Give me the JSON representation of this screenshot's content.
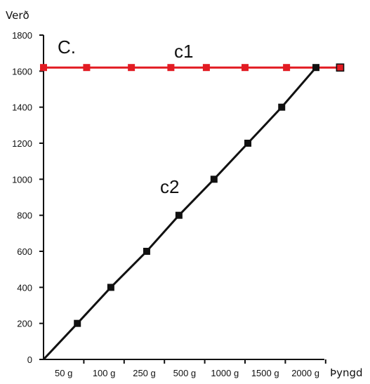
{
  "chart_data": {
    "type": "line",
    "panel_label": "C.",
    "ylabel": "Verð",
    "xlabel": "Þyngd",
    "ylim": [
      0,
      1800
    ],
    "yticks": [
      0,
      200,
      400,
      600,
      800,
      1000,
      1200,
      1400,
      1600,
      1800
    ],
    "categories": [
      "50 g",
      "100 g",
      "250 g",
      "500 g",
      "1000 g",
      "1500 g",
      "2000 g"
    ],
    "grid": false,
    "series": [
      {
        "name": "c1",
        "color": "#e21b22",
        "marker_color": "#e21b22",
        "points": [
          {
            "x": 0,
            "y": 1620
          },
          {
            "x": 1.07,
            "y": 1620
          },
          {
            "x": 2.18,
            "y": 1620
          },
          {
            "x": 3.16,
            "y": 1620
          },
          {
            "x": 4.04,
            "y": 1620
          },
          {
            "x": 5.0,
            "y": 1620
          },
          {
            "x": 6.03,
            "y": 1620
          },
          {
            "x": 7.36,
            "y": 1620
          }
        ]
      },
      {
        "name": "c2",
        "color": "#111111",
        "marker_color": "#111111",
        "points": [
          {
            "x": 0,
            "y": 0
          },
          {
            "x": 0.84,
            "y": 200
          },
          {
            "x": 1.67,
            "y": 400
          },
          {
            "x": 2.56,
            "y": 600
          },
          {
            "x": 3.36,
            "y": 800
          },
          {
            "x": 4.23,
            "y": 1000
          },
          {
            "x": 5.07,
            "y": 1200
          },
          {
            "x": 5.91,
            "y": 1400
          },
          {
            "x": 6.76,
            "y": 1620
          }
        ]
      }
    ]
  }
}
